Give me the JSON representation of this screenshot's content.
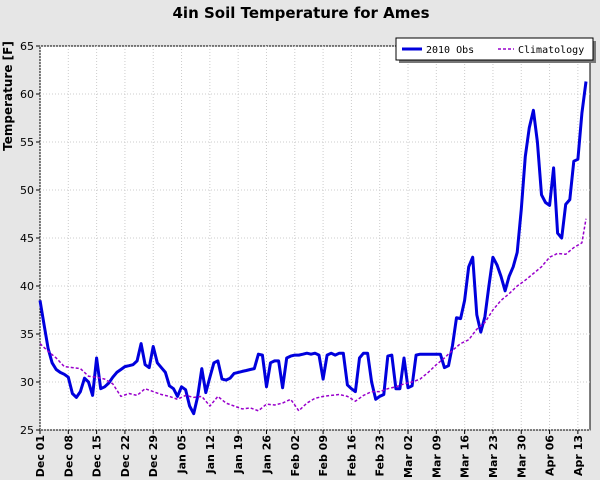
{
  "chart_data": {
    "type": "line",
    "title": "4in Soil Temperature for  Ames",
    "xlabel": "",
    "ylabel": "Temperature [F]",
    "ylim": [
      25,
      65
    ],
    "yticks": [
      25,
      30,
      35,
      40,
      45,
      50,
      55,
      60,
      65
    ],
    "xlim": [
      "2009-12-01",
      "2010-04-16"
    ],
    "xticks": [
      {
        "date": "2009-12-01",
        "label": "Dec 01"
      },
      {
        "date": "2009-12-08",
        "label": "Dec 08"
      },
      {
        "date": "2009-12-15",
        "label": "Dec 15"
      },
      {
        "date": "2009-12-22",
        "label": "Dec 22"
      },
      {
        "date": "2009-12-29",
        "label": "Dec 29"
      },
      {
        "date": "2010-01-05",
        "label": "Jan 05"
      },
      {
        "date": "2010-01-12",
        "label": "Jan 12"
      },
      {
        "date": "2010-01-19",
        "label": "Jan 19"
      },
      {
        "date": "2010-01-26",
        "label": "Jan 26"
      },
      {
        "date": "2010-02-02",
        "label": "Feb 02"
      },
      {
        "date": "2010-02-09",
        "label": "Feb 09"
      },
      {
        "date": "2010-02-16",
        "label": "Feb 16"
      },
      {
        "date": "2010-02-23",
        "label": "Feb 23"
      },
      {
        "date": "2010-03-02",
        "label": "Mar 02"
      },
      {
        "date": "2010-03-09",
        "label": "Mar 09"
      },
      {
        "date": "2010-03-16",
        "label": "Mar 16"
      },
      {
        "date": "2010-03-23",
        "label": "Mar 23"
      },
      {
        "date": "2010-03-30",
        "label": "Mar 30"
      },
      {
        "date": "2010-04-06",
        "label": "Apr 06"
      },
      {
        "date": "2010-04-13",
        "label": "Apr 13"
      }
    ],
    "grid": true,
    "legend": {
      "position": "top-right"
    },
    "series": [
      {
        "name": "2010 Obs",
        "color": "#0000dd",
        "style": "solid",
        "points": [
          [
            "2009-12-01",
            38.5
          ],
          [
            "2009-12-02",
            36
          ],
          [
            "2009-12-03",
            33.5
          ],
          [
            "2009-12-04",
            32
          ],
          [
            "2009-12-05",
            31.3
          ],
          [
            "2009-12-06",
            31
          ],
          [
            "2009-12-07",
            30.8
          ],
          [
            "2009-12-08",
            30.5
          ],
          [
            "2009-12-09",
            28.8
          ],
          [
            "2009-12-10",
            28.4
          ],
          [
            "2009-12-11",
            29
          ],
          [
            "2009-12-12",
            30.4
          ],
          [
            "2009-12-13",
            30
          ],
          [
            "2009-12-14",
            28.6
          ],
          [
            "2009-12-15",
            32.5
          ],
          [
            "2009-12-16",
            29.3
          ],
          [
            "2009-12-17",
            29.5
          ],
          [
            "2009-12-18",
            29.9
          ],
          [
            "2009-12-19",
            30.5
          ],
          [
            "2009-12-20",
            31
          ],
          [
            "2009-12-21",
            31.3
          ],
          [
            "2009-12-22",
            31.6
          ],
          [
            "2009-12-23",
            31.7
          ],
          [
            "2009-12-24",
            31.8
          ],
          [
            "2009-12-25",
            32.2
          ],
          [
            "2009-12-26",
            34
          ],
          [
            "2009-12-27",
            31.8
          ],
          [
            "2009-12-28",
            31.5
          ],
          [
            "2009-12-29",
            33.7
          ],
          [
            "2009-12-30",
            32
          ],
          [
            "2009-12-31",
            31.5
          ],
          [
            "2010-01-01",
            31
          ],
          [
            "2010-01-02",
            29.6
          ],
          [
            "2010-01-03",
            29.3
          ],
          [
            "2010-01-04",
            28.5
          ],
          [
            "2010-01-05",
            29.5
          ],
          [
            "2010-01-06",
            29.2
          ],
          [
            "2010-01-07",
            27.5
          ],
          [
            "2010-01-08",
            26.7
          ],
          [
            "2010-01-09",
            28.5
          ],
          [
            "2010-01-10",
            31.4
          ],
          [
            "2010-01-11",
            28.9
          ],
          [
            "2010-01-12",
            30.5
          ],
          [
            "2010-01-13",
            32
          ],
          [
            "2010-01-14",
            32.2
          ],
          [
            "2010-01-15",
            30.3
          ],
          [
            "2010-01-16",
            30.2
          ],
          [
            "2010-01-17",
            30.4
          ],
          [
            "2010-01-18",
            30.9
          ],
          [
            "2010-01-19",
            31
          ],
          [
            "2010-01-20",
            31.1
          ],
          [
            "2010-01-21",
            31.2
          ],
          [
            "2010-01-22",
            31.3
          ],
          [
            "2010-01-23",
            31.4
          ],
          [
            "2010-01-24",
            32.9
          ],
          [
            "2010-01-25",
            32.8
          ],
          [
            "2010-01-26",
            29.5
          ],
          [
            "2010-01-27",
            32
          ],
          [
            "2010-01-28",
            32.2
          ],
          [
            "2010-01-29",
            32.2
          ],
          [
            "2010-01-30",
            29.4
          ],
          [
            "2010-01-31",
            32.5
          ],
          [
            "2010-02-01",
            32.7
          ],
          [
            "2010-02-02",
            32.8
          ],
          [
            "2010-02-03",
            32.8
          ],
          [
            "2010-02-04",
            32.9
          ],
          [
            "2010-02-05",
            33
          ],
          [
            "2010-02-06",
            32.9
          ],
          [
            "2010-02-07",
            33
          ],
          [
            "2010-02-08",
            32.8
          ],
          [
            "2010-02-09",
            30.3
          ],
          [
            "2010-02-10",
            32.8
          ],
          [
            "2010-02-11",
            33
          ],
          [
            "2010-02-12",
            32.8
          ],
          [
            "2010-02-13",
            33
          ],
          [
            "2010-02-14",
            33
          ],
          [
            "2010-02-15",
            29.7
          ],
          [
            "2010-02-16",
            29.3
          ],
          [
            "2010-02-17",
            29
          ],
          [
            "2010-02-18",
            32.5
          ],
          [
            "2010-02-19",
            33
          ],
          [
            "2010-02-20",
            33
          ],
          [
            "2010-02-21",
            30
          ],
          [
            "2010-02-22",
            28.2
          ],
          [
            "2010-02-23",
            28.5
          ],
          [
            "2010-02-24",
            28.7
          ],
          [
            "2010-02-25",
            32.7
          ],
          [
            "2010-02-26",
            32.8
          ],
          [
            "2010-02-27",
            29.3
          ],
          [
            "2010-02-28",
            29.3
          ],
          [
            "2010-03-01",
            32.5
          ],
          [
            "2010-03-02",
            29.4
          ],
          [
            "2010-03-03",
            29.6
          ],
          [
            "2010-03-04",
            32.8
          ],
          [
            "2010-03-05",
            32.9
          ],
          [
            "2010-03-06",
            32.9
          ],
          [
            "2010-03-07",
            32.9
          ],
          [
            "2010-03-08",
            32.9
          ],
          [
            "2010-03-09",
            32.9
          ],
          [
            "2010-03-10",
            32.9
          ],
          [
            "2010-03-11",
            31.5
          ],
          [
            "2010-03-12",
            31.7
          ],
          [
            "2010-03-13",
            33.8
          ],
          [
            "2010-03-14",
            36.7
          ],
          [
            "2010-03-15",
            36.6
          ],
          [
            "2010-03-16",
            38.5
          ],
          [
            "2010-03-17",
            42
          ],
          [
            "2010-03-18",
            43
          ],
          [
            "2010-03-19",
            37
          ],
          [
            "2010-03-20",
            35.2
          ],
          [
            "2010-03-21",
            36.8
          ],
          [
            "2010-03-22",
            40
          ],
          [
            "2010-03-23",
            43
          ],
          [
            "2010-03-24",
            42.2
          ],
          [
            "2010-03-25",
            41
          ],
          [
            "2010-03-26",
            39.5
          ],
          [
            "2010-03-27",
            41
          ],
          [
            "2010-03-28",
            42
          ],
          [
            "2010-03-29",
            43.5
          ],
          [
            "2010-03-30",
            48
          ],
          [
            "2010-03-31",
            53.5
          ],
          [
            "2010-04-01",
            56.5
          ],
          [
            "2010-04-02",
            58.3
          ],
          [
            "2010-04-03",
            55
          ],
          [
            "2010-04-04",
            49.5
          ],
          [
            "2010-04-05",
            48.7
          ],
          [
            "2010-04-06",
            48.4
          ],
          [
            "2010-04-07",
            52.3
          ],
          [
            "2010-04-08",
            45.5
          ],
          [
            "2010-04-09",
            45
          ],
          [
            "2010-04-10",
            48.5
          ],
          [
            "2010-04-11",
            49
          ],
          [
            "2010-04-12",
            53
          ],
          [
            "2010-04-13",
            53.2
          ],
          [
            "2010-04-14",
            58
          ],
          [
            "2010-04-15",
            61.3
          ]
        ]
      },
      {
        "name": "Climatology",
        "color": "#9900cc",
        "style": "dashed",
        "points": [
          [
            "2009-12-01",
            34
          ],
          [
            "2009-12-03",
            33.2
          ],
          [
            "2009-12-05",
            32.5
          ],
          [
            "2009-12-07",
            31.6
          ],
          [
            "2009-12-09",
            31.5
          ],
          [
            "2009-12-11",
            31.4
          ],
          [
            "2009-12-13",
            30.6
          ],
          [
            "2009-12-15",
            30.5
          ],
          [
            "2009-12-17",
            30.3
          ],
          [
            "2009-12-19",
            29.8
          ],
          [
            "2009-12-21",
            28.5
          ],
          [
            "2009-12-23",
            28.8
          ],
          [
            "2009-12-25",
            28.6
          ],
          [
            "2009-12-27",
            29.3
          ],
          [
            "2009-12-29",
            29
          ],
          [
            "2009-12-31",
            28.7
          ],
          [
            "2010-01-02",
            28.5
          ],
          [
            "2010-01-04",
            28.2
          ],
          [
            "2010-01-06",
            28.6
          ],
          [
            "2010-01-08",
            28.4
          ],
          [
            "2010-01-10",
            28.5
          ],
          [
            "2010-01-12",
            27.5
          ],
          [
            "2010-01-14",
            28.5
          ],
          [
            "2010-01-16",
            27.8
          ],
          [
            "2010-01-18",
            27.5
          ],
          [
            "2010-01-20",
            27.2
          ],
          [
            "2010-01-22",
            27.3
          ],
          [
            "2010-01-24",
            27
          ],
          [
            "2010-01-26",
            27.7
          ],
          [
            "2010-01-28",
            27.6
          ],
          [
            "2010-01-30",
            27.8
          ],
          [
            "2010-02-01",
            28.2
          ],
          [
            "2010-02-03",
            27
          ],
          [
            "2010-02-05",
            27.8
          ],
          [
            "2010-02-07",
            28.3
          ],
          [
            "2010-02-09",
            28.5
          ],
          [
            "2010-02-11",
            28.6
          ],
          [
            "2010-02-13",
            28.7
          ],
          [
            "2010-02-15",
            28.5
          ],
          [
            "2010-02-17",
            28
          ],
          [
            "2010-02-19",
            28.6
          ],
          [
            "2010-02-21",
            29
          ],
          [
            "2010-02-23",
            29
          ],
          [
            "2010-02-25",
            29.3
          ],
          [
            "2010-02-27",
            29.5
          ],
          [
            "2010-03-01",
            29.8
          ],
          [
            "2010-03-03",
            30
          ],
          [
            "2010-03-05",
            30.3
          ],
          [
            "2010-03-07",
            31
          ],
          [
            "2010-03-09",
            31.8
          ],
          [
            "2010-03-11",
            32.5
          ],
          [
            "2010-03-13",
            33.3
          ],
          [
            "2010-03-15",
            34
          ],
          [
            "2010-03-17",
            34.4
          ],
          [
            "2010-03-19",
            35.5
          ],
          [
            "2010-03-21",
            36.2
          ],
          [
            "2010-03-23",
            37.5
          ],
          [
            "2010-03-25",
            38.5
          ],
          [
            "2010-03-27",
            39.2
          ],
          [
            "2010-03-29",
            40
          ],
          [
            "2010-03-31",
            40.6
          ],
          [
            "2010-04-02",
            41.3
          ],
          [
            "2010-04-04",
            42
          ],
          [
            "2010-04-06",
            43
          ],
          [
            "2010-04-08",
            43.4
          ],
          [
            "2010-04-10",
            43.3
          ],
          [
            "2010-04-12",
            44
          ],
          [
            "2010-04-14",
            44.5
          ],
          [
            "2010-04-15",
            47
          ]
        ]
      }
    ]
  }
}
